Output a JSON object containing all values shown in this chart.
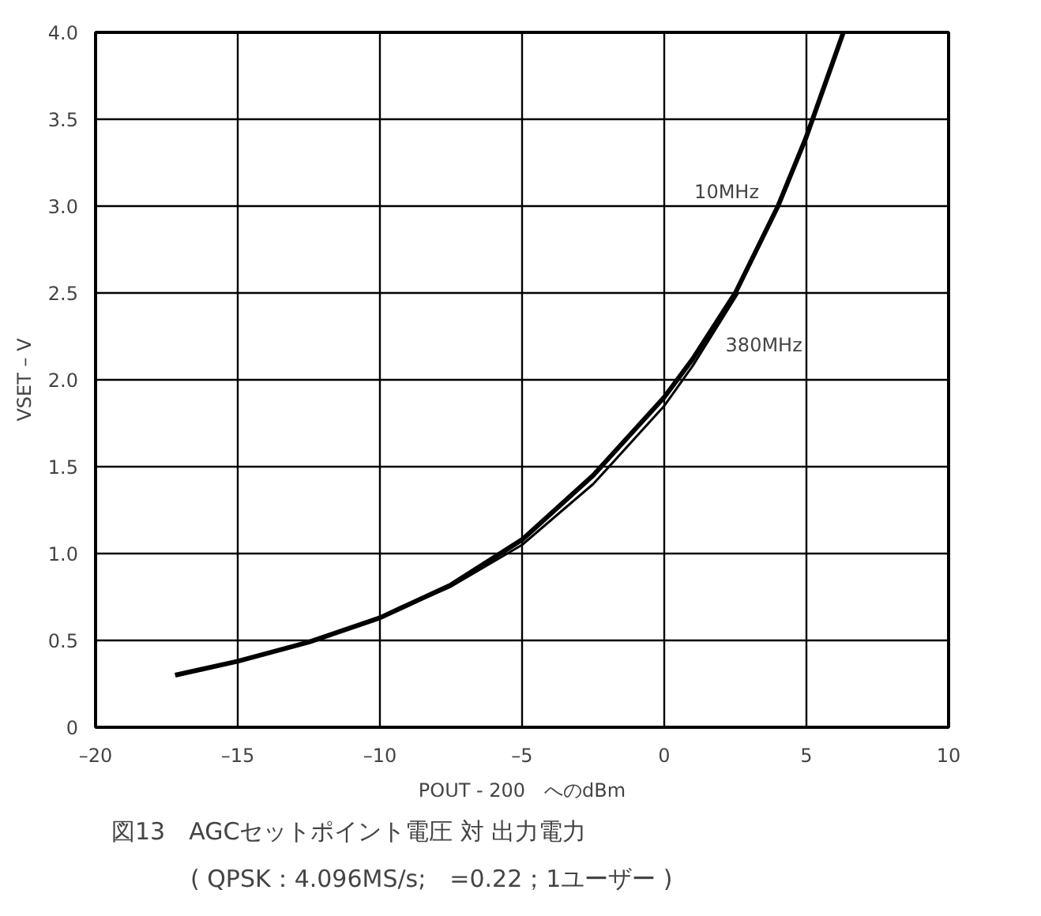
{
  "chart_data": {
    "type": "line",
    "title": "図13　AGCセットポイント電圧 対 出力電力",
    "subtitle": "( QPSK：4.096MS/s;　=0.22；1ユーザー )",
    "xlabel": "POUT - 200　へのdBm",
    "ylabel": "VSET – V",
    "series": [
      {
        "name": "10MHz",
        "color": "#000000",
        "x": [
          -17.2,
          -15,
          -12.5,
          -10,
          -7.5,
          -5,
          -2.5,
          0,
          1,
          2.5,
          4,
          5,
          6.3
        ],
        "values": [
          0.3,
          0.38,
          0.49,
          0.63,
          0.82,
          1.08,
          1.45,
          1.9,
          2.12,
          2.5,
          3.0,
          3.4,
          4.0
        ]
      },
      {
        "name": "380MHz",
        "color": "#000000",
        "x": [
          -17.2,
          -15,
          -12.5,
          -10,
          -7.5,
          -5,
          -2.5,
          0,
          1,
          2.6
        ],
        "values": [
          0.3,
          0.38,
          0.49,
          0.63,
          0.81,
          1.05,
          1.4,
          1.85,
          2.08,
          2.5
        ]
      }
    ],
    "xlim": [
      -20,
      10
    ],
    "ylim": [
      0,
      4.0
    ],
    "xticks": [
      {
        "value": -20,
        "label": "–20"
      },
      {
        "value": -15,
        "label": "–15"
      },
      {
        "value": -10,
        "label": "–10"
      },
      {
        "value": -5,
        "label": "–5"
      },
      0,
      5,
      10
    ],
    "yticks": [
      0,
      0.5,
      {
        "value": 1,
        "label": "1.0"
      },
      1.5,
      {
        "value": 2,
        "label": "2.0"
      },
      2.5,
      {
        "value": 3,
        "label": "3.0"
      },
      3.5,
      {
        "value": 4,
        "label": "4.0"
      }
    ],
    "grid": true,
    "line_style": "solid",
    "marker": "none",
    "legend": false
  }
}
